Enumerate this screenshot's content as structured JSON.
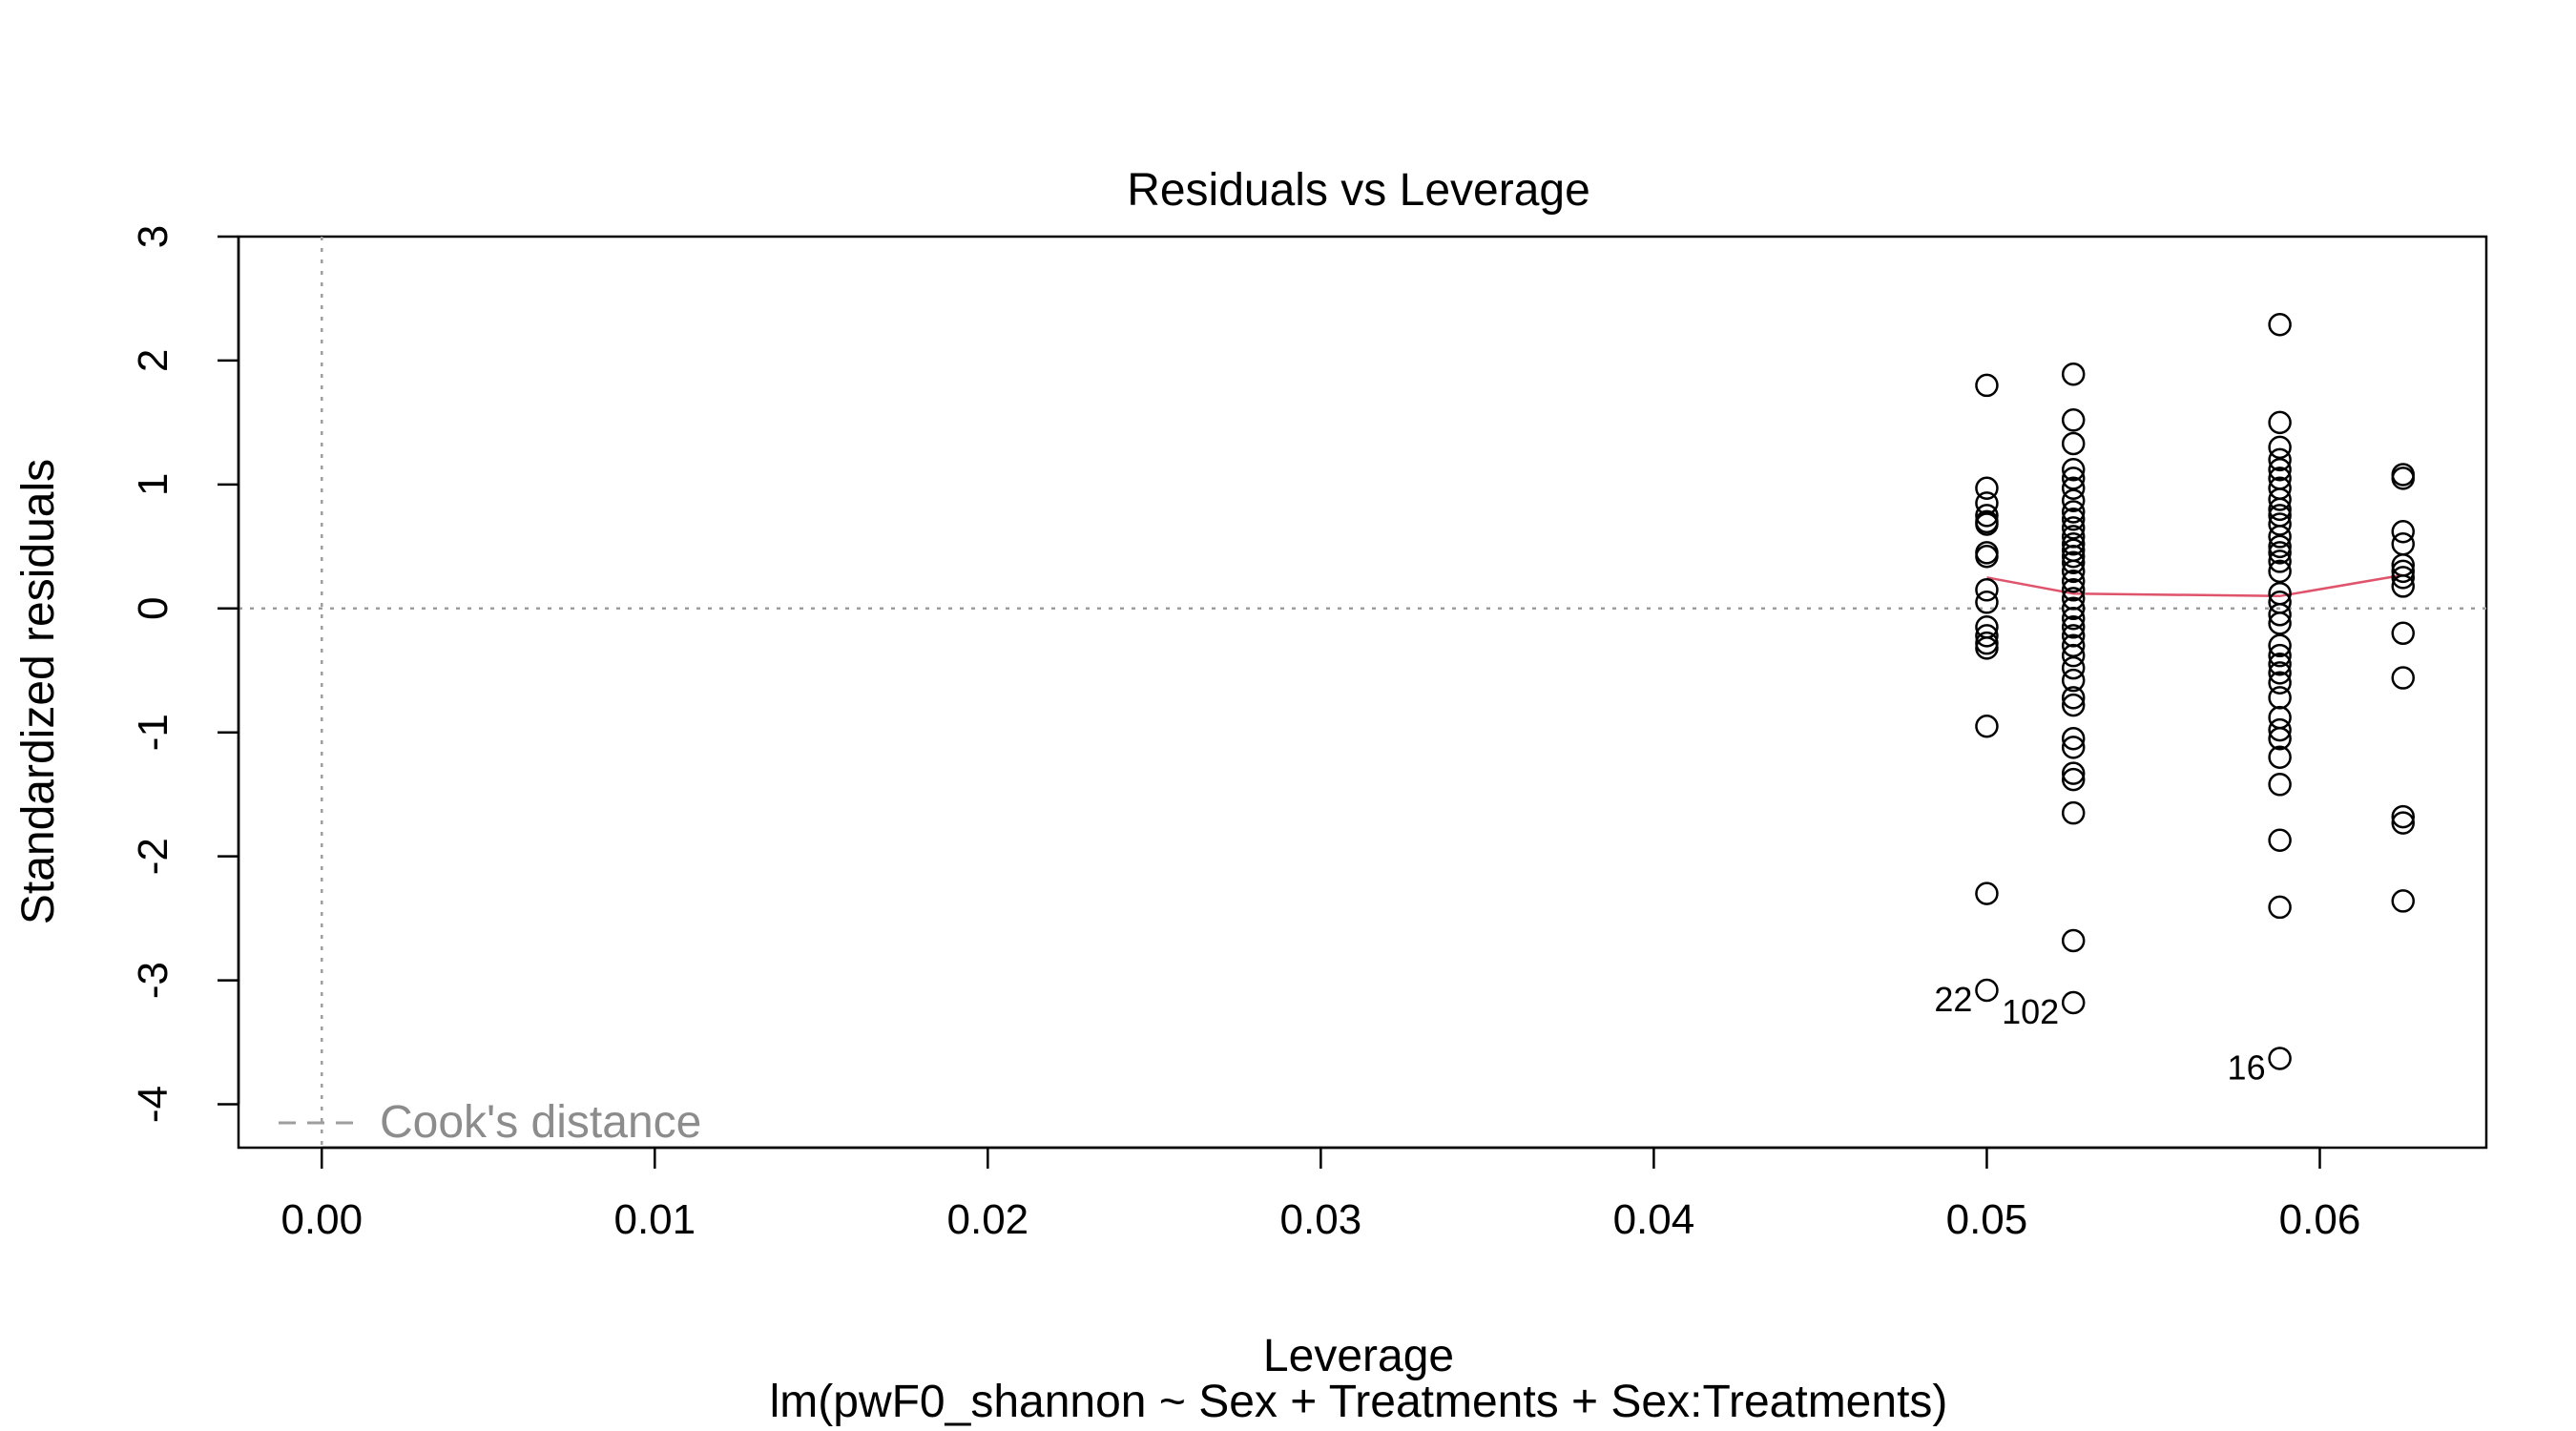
{
  "chart_data": {
    "type": "scatter",
    "title": "Residuals vs Leverage",
    "xlabel": "Leverage",
    "ylabel": "Standardized residuals",
    "subtitle": "lm(pwF0_shannon ~ Sex + Treatments + Sex:Treatments)",
    "xlim": [
      -0.0025,
      0.065
    ],
    "ylim": [
      -4.35,
      3.0
    ],
    "x_ticks": [
      "0.00",
      "0.01",
      "0.02",
      "0.03",
      "0.04",
      "0.05",
      "0.06"
    ],
    "y_ticks": [
      "-4",
      "-3",
      "-2",
      "-1",
      "0",
      "1",
      "2",
      "3"
    ],
    "legend": {
      "label": "Cook's distance",
      "position": "bottom-left"
    },
    "colors": {
      "points": "#000000",
      "smooth": "#DF536B",
      "reference": "#9E9E9E",
      "legend": "#8C8C8C"
    },
    "groups": [
      {
        "x": 0.05,
        "y": [
          1.8,
          0.97,
          0.85,
          0.75,
          0.7,
          0.68,
          0.45,
          0.42,
          0.15,
          0.05,
          -0.15,
          -0.22,
          -0.28,
          -0.32,
          -0.95,
          -2.3,
          -3.08
        ]
      },
      {
        "x": 0.0526,
        "y": [
          1.89,
          1.52,
          1.33,
          1.12,
          1.05,
          0.97,
          0.87,
          0.78,
          0.72,
          0.65,
          0.58,
          0.52,
          0.47,
          0.42,
          0.37,
          0.3,
          0.22,
          0.15,
          0.08,
          0.0,
          -0.08,
          -0.15,
          -0.22,
          -0.3,
          -0.38,
          -0.48,
          -0.58,
          -0.72,
          -0.78,
          -1.05,
          -1.12,
          -1.33,
          -1.38,
          -1.65,
          -2.68,
          -3.18
        ]
      },
      {
        "x": 0.0588,
        "y": [
          2.29,
          1.5,
          1.3,
          1.2,
          1.12,
          1.05,
          0.97,
          0.88,
          0.8,
          0.75,
          0.68,
          0.58,
          0.5,
          0.45,
          0.38,
          0.3,
          0.12,
          0.05,
          -0.05,
          -0.12,
          -0.3,
          -0.38,
          -0.45,
          -0.52,
          -0.6,
          -0.72,
          -0.88,
          -0.98,
          -1.05,
          -1.2,
          -1.42,
          -1.87,
          -2.41,
          -3.63
        ]
      },
      {
        "x": 0.0625,
        "y": [
          1.08,
          1.05,
          0.62,
          0.52,
          0.35,
          0.3,
          0.25,
          0.18,
          -0.2,
          -0.56,
          -1.68,
          -1.73,
          -2.36
        ]
      }
    ],
    "smooth_line": {
      "x": [
        0.05,
        0.0526,
        0.0588,
        0.0625
      ],
      "y": [
        0.25,
        0.12,
        0.1,
        0.27
      ]
    },
    "annotations": [
      {
        "label": "22",
        "x": 0.05,
        "y": -3.08
      },
      {
        "label": "102",
        "x": 0.0526,
        "y": -3.18
      },
      {
        "label": "16",
        "x": 0.0588,
        "y": -3.63
      }
    ]
  }
}
